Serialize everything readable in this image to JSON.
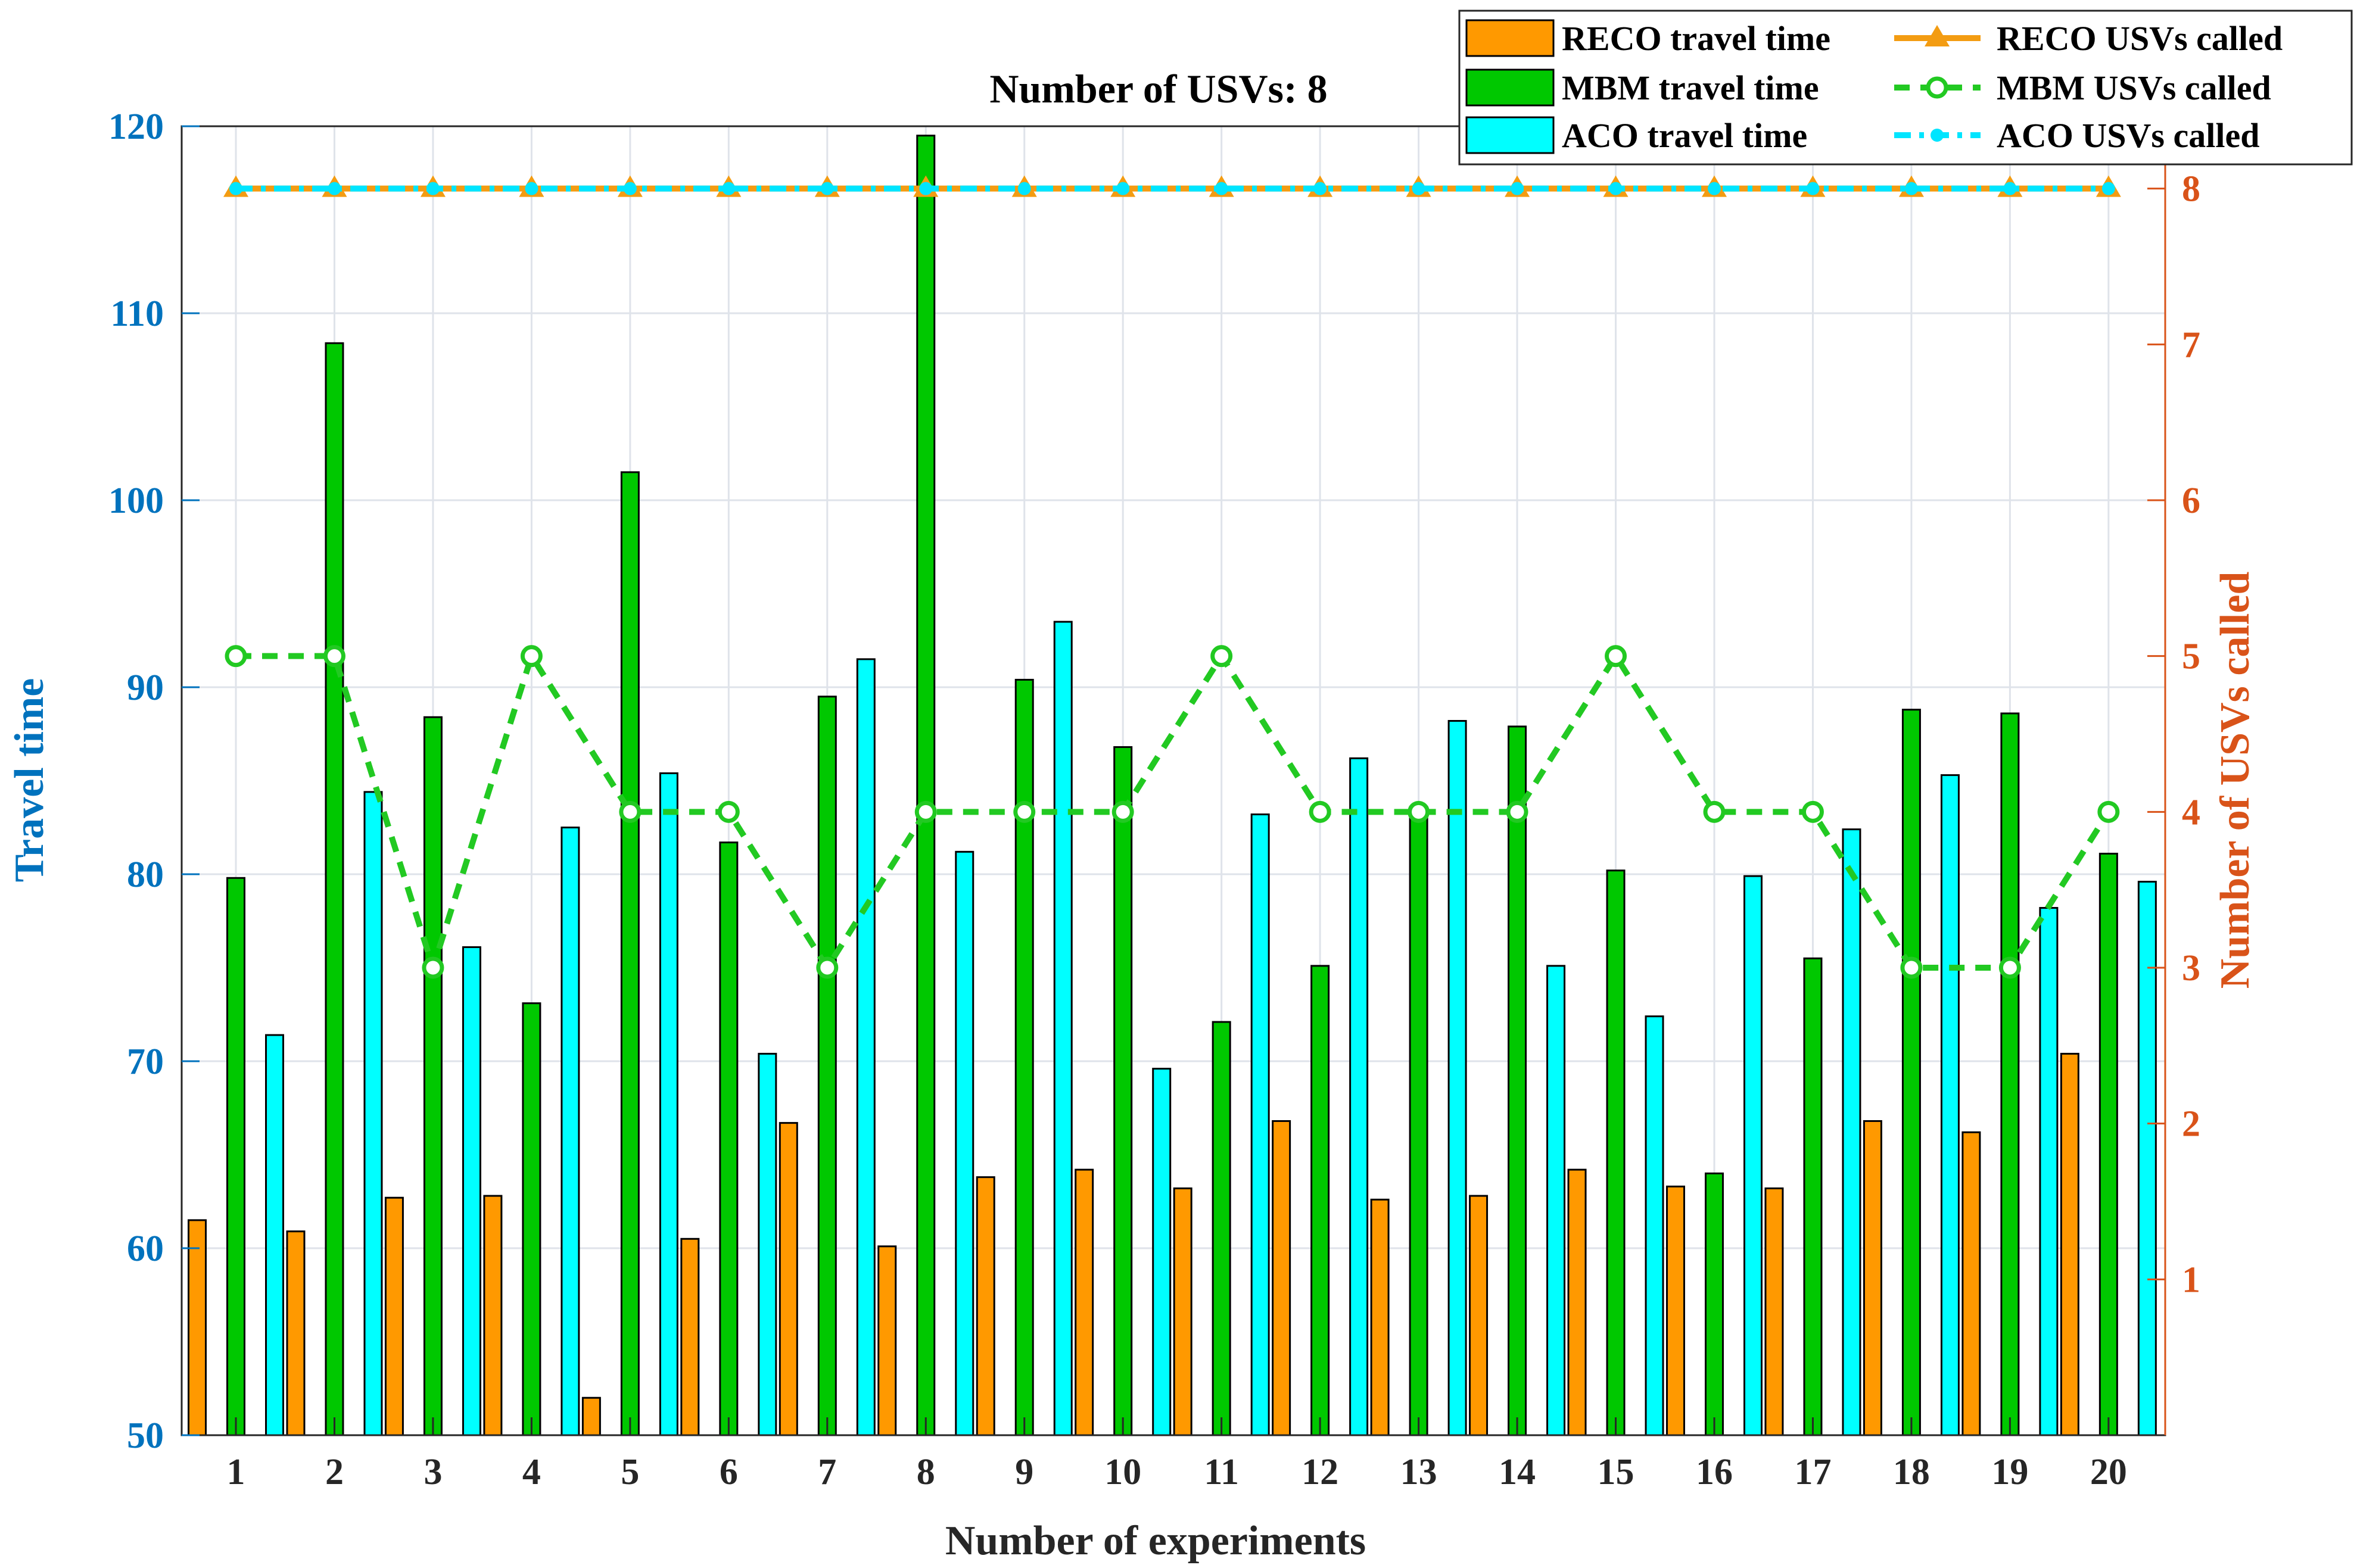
{
  "chart_data": {
    "type": "bar+line",
    "title": "Number of USVs: 8",
    "xlabel": "Number of experiments",
    "ylabel_left": "Travel time",
    "ylabel_right": "Number of USVs called",
    "categories": [
      "1",
      "2",
      "3",
      "4",
      "5",
      "6",
      "7",
      "8",
      "9",
      "10",
      "11",
      "12",
      "13",
      "14",
      "15",
      "16",
      "17",
      "18",
      "19",
      "20"
    ],
    "ylim_left": [
      50,
      120
    ],
    "yticks_left": [
      "50",
      "60",
      "70",
      "80",
      "90",
      "100",
      "110",
      "120"
    ],
    "ylim_right": [
      0,
      8.4
    ],
    "yticks_right": [
      "1",
      "2",
      "3",
      "4",
      "5",
      "6",
      "7",
      "8"
    ],
    "grid": true,
    "legend_position": "top-right",
    "bar_series": [
      {
        "name": "RECO travel time",
        "color": "#FF9900",
        "values": [
          61.5,
          60.9,
          62.7,
          62.8,
          52.0,
          60.5,
          66.7,
          60.1,
          63.8,
          64.2,
          63.2,
          66.8,
          62.6,
          62.8,
          64.2,
          63.3,
          63.2,
          66.8,
          66.2,
          70.4
        ]
      },
      {
        "name": "MBM travel time",
        "color": "#00C800",
        "values": [
          79.8,
          108.4,
          88.4,
          73.1,
          101.5,
          81.7,
          89.5,
          119.5,
          90.4,
          86.8,
          72.1,
          75.1,
          83.6,
          87.9,
          80.2,
          64.0,
          75.5,
          88.8,
          88.6,
          81.1
        ]
      },
      {
        "name": "ACO travel time",
        "color": "#00FFFF",
        "values": [
          71.4,
          84.4,
          76.1,
          82.5,
          85.4,
          70.4,
          91.5,
          81.2,
          93.5,
          69.6,
          83.2,
          86.2,
          88.2,
          75.1,
          72.4,
          79.9,
          82.4,
          85.3,
          78.2,
          79.6
        ]
      }
    ],
    "line_series": [
      {
        "name": "RECO USVs called",
        "color": "#F39C12",
        "style": "solid",
        "marker": "triangle",
        "values": [
          8,
          8,
          8,
          8,
          8,
          8,
          8,
          8,
          8,
          8,
          8,
          8,
          8,
          8,
          8,
          8,
          8,
          8,
          8,
          8
        ]
      },
      {
        "name": "MBM USVs called",
        "color": "#22C922",
        "style": "dashed",
        "marker": "circle",
        "values": [
          5,
          5,
          3,
          5,
          4,
          4,
          3,
          4,
          4,
          4,
          5,
          4,
          4,
          4,
          5,
          4,
          4,
          3,
          3,
          4
        ]
      },
      {
        "name": "ACO USVs called",
        "color": "#00E5FF",
        "style": "dashdot",
        "marker": "dot",
        "values": [
          8,
          8,
          8,
          8,
          8,
          8,
          8,
          8,
          8,
          8,
          8,
          8,
          8,
          8,
          8,
          8,
          8,
          8,
          8,
          8
        ]
      }
    ],
    "axis_colors": {
      "left": "#0072BD",
      "right": "#D95319"
    }
  }
}
